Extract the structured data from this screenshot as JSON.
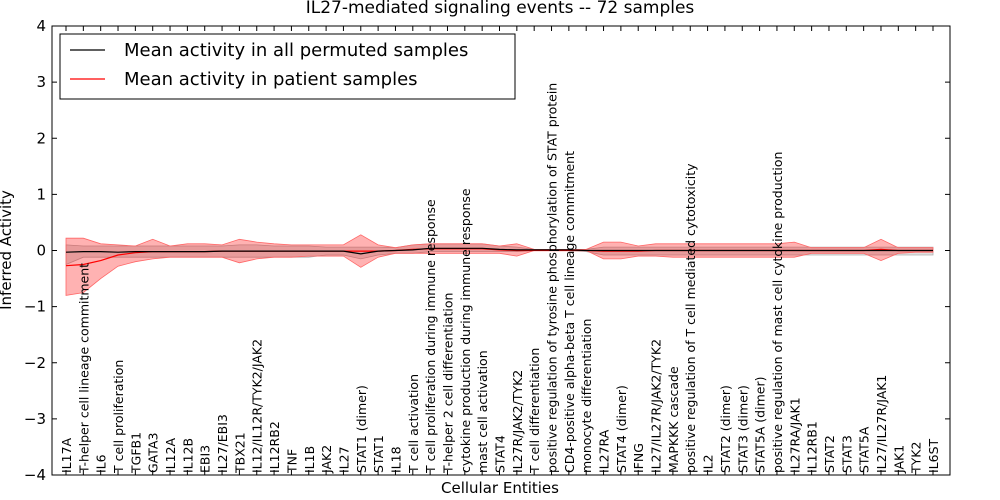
{
  "chart_data": {
    "type": "line",
    "title": "IL27-mediated signaling events -- 72 samples",
    "xlabel": "Cellular Entities",
    "ylabel": "Inferred Activity",
    "ylim": [
      -4,
      4
    ],
    "yticks": [
      -4,
      -3,
      -2,
      -1,
      0,
      1,
      2,
      3,
      4
    ],
    "legend": {
      "placement": "top-left",
      "entries": [
        {
          "name": "Mean activity in all permuted samples",
          "color": "#000000"
        },
        {
          "name": "Mean activity in patient samples",
          "color": "#ff0000"
        }
      ]
    },
    "categories": [
      "IL17A",
      "T-helper cell lineage commitment",
      "IL6",
      "T cell proliferation",
      "TGFB1",
      "GATA3",
      "IL12A",
      "IL12B",
      "EBI3",
      "IL27/EBI3",
      "TBX21",
      "IL12/IL12R/TYK2/JAK2",
      "IL12RB2",
      "TNF",
      "IL1B",
      "JAK2",
      "IL27",
      "STAT1 (dimer)",
      "STAT1",
      "IL18",
      "T cell activation",
      "T cell proliferation during immune response",
      "T-helper 2 cell differentiation",
      "cytokine production during immune response",
      "mast cell activation",
      "STAT4",
      "IL27R/JAK2/TYK2",
      "T cell differentiation",
      "positive regulation of tyrosine phosphorylation of STAT protein",
      "CD4-positive alpha-beta T cell lineage commitment",
      "monocyte differentiation",
      "IL27RA",
      "STAT4 (dimer)",
      "IFNG",
      "IL27/IL27R/JAK2/TYK2",
      "MAPKKK cascade",
      "positive regulation of T cell mediated cytotoxicity",
      "IL2",
      "STAT2 (dimer)",
      "STAT3 (dimer)",
      "STAT5A (dimer)",
      "positive regulation of mast cell cytokine production",
      "IL27RA/JAK1",
      "IL12RB1",
      "STAT2",
      "STAT3",
      "STAT5A",
      "IL27/IL27R/JAK1",
      "JAK1",
      "TYK2",
      "IL6ST"
    ],
    "series": [
      {
        "name": "Mean activity in all permuted samples",
        "values": [
          -0.03,
          -0.02,
          -0.02,
          -0.03,
          -0.02,
          -0.02,
          -0.02,
          -0.02,
          -0.02,
          -0.01,
          -0.01,
          -0.01,
          -0.01,
          -0.01,
          -0.01,
          -0.01,
          -0.01,
          -0.06,
          -0.01,
          0.0,
          0.01,
          0.04,
          0.04,
          0.04,
          0.04,
          0.02,
          0.01,
          0.01,
          0.01,
          0.01,
          0.0,
          0.0,
          0.0,
          0.0,
          0.0,
          0.0,
          0.0,
          0.0,
          0.0,
          0.0,
          0.0,
          0.0,
          0.0,
          0.0,
          0.0,
          0.0,
          0.0,
          0.0,
          0.0,
          0.0,
          0.0
        ],
        "lower": [
          -0.25,
          -0.12,
          -0.12,
          -0.12,
          -0.12,
          -0.12,
          -0.12,
          -0.12,
          -0.12,
          -0.12,
          -0.12,
          -0.12,
          -0.12,
          -0.12,
          -0.12,
          -0.08,
          -0.08,
          -0.15,
          -0.08,
          -0.05,
          -0.05,
          -0.02,
          -0.02,
          -0.02,
          -0.02,
          -0.02,
          -0.02,
          0.0,
          0.0,
          0.0,
          -0.02,
          -0.08,
          -0.08,
          -0.08,
          -0.08,
          -0.08,
          -0.08,
          -0.08,
          -0.08,
          -0.08,
          -0.08,
          -0.08,
          -0.08,
          -0.08,
          -0.08,
          -0.08,
          -0.08,
          -0.08,
          -0.08,
          -0.08,
          -0.08
        ],
        "upper": [
          0.1,
          0.08,
          0.08,
          0.08,
          0.08,
          0.08,
          0.08,
          0.08,
          0.08,
          0.08,
          0.1,
          0.1,
          0.08,
          0.08,
          0.08,
          0.06,
          0.06,
          0.06,
          0.06,
          0.05,
          0.1,
          0.12,
          0.12,
          0.12,
          0.12,
          0.08,
          0.06,
          0.02,
          0.02,
          0.02,
          0.02,
          0.06,
          0.06,
          0.06,
          0.06,
          0.06,
          0.06,
          0.06,
          0.06,
          0.06,
          0.06,
          0.06,
          0.06,
          0.06,
          0.06,
          0.06,
          0.06,
          0.06,
          0.06,
          0.06,
          0.06
        ]
      },
      {
        "name": "Mean activity in patient samples",
        "values": [
          -0.27,
          -0.25,
          -0.18,
          -0.08,
          -0.04,
          -0.02,
          -0.02,
          -0.02,
          -0.02,
          -0.01,
          -0.01,
          -0.01,
          -0.01,
          -0.01,
          -0.01,
          -0.01,
          -0.01,
          -0.01,
          -0.01,
          0.0,
          0.02,
          0.03,
          0.03,
          0.03,
          0.03,
          0.01,
          0.0,
          0.0,
          0.0,
          0.0,
          0.0,
          -0.01,
          -0.01,
          -0.01,
          0.0,
          0.0,
          0.0,
          0.0,
          0.0,
          0.0,
          0.0,
          0.0,
          0.0,
          0.0,
          0.0,
          0.0,
          0.0,
          0.02,
          0.0,
          0.0,
          0.0
        ],
        "lower": [
          -0.8,
          -0.75,
          -0.5,
          -0.28,
          -0.2,
          -0.15,
          -0.12,
          -0.12,
          -0.12,
          -0.12,
          -0.22,
          -0.15,
          -0.12,
          -0.12,
          -0.1,
          -0.1,
          -0.1,
          -0.3,
          -0.12,
          -0.05,
          -0.05,
          -0.05,
          -0.05,
          -0.05,
          -0.05,
          -0.05,
          -0.1,
          0.0,
          0.0,
          0.0,
          0.0,
          -0.15,
          -0.15,
          -0.1,
          -0.1,
          -0.12,
          -0.12,
          -0.12,
          -0.12,
          -0.12,
          -0.12,
          -0.12,
          -0.12,
          -0.05,
          -0.05,
          -0.05,
          -0.05,
          -0.18,
          -0.05,
          -0.03,
          -0.03
        ],
        "upper": [
          0.22,
          0.22,
          0.12,
          0.1,
          0.08,
          0.2,
          0.08,
          0.12,
          0.12,
          0.1,
          0.2,
          0.15,
          0.12,
          0.1,
          0.1,
          0.1,
          0.1,
          0.28,
          0.1,
          0.05,
          0.1,
          0.12,
          0.12,
          0.12,
          0.12,
          0.08,
          0.12,
          0.02,
          0.02,
          0.02,
          0.02,
          0.15,
          0.15,
          0.08,
          0.12,
          0.12,
          0.12,
          0.12,
          0.12,
          0.12,
          0.12,
          0.12,
          0.15,
          0.05,
          0.05,
          0.05,
          0.05,
          0.2,
          0.05,
          0.05,
          0.05
        ]
      }
    ]
  }
}
